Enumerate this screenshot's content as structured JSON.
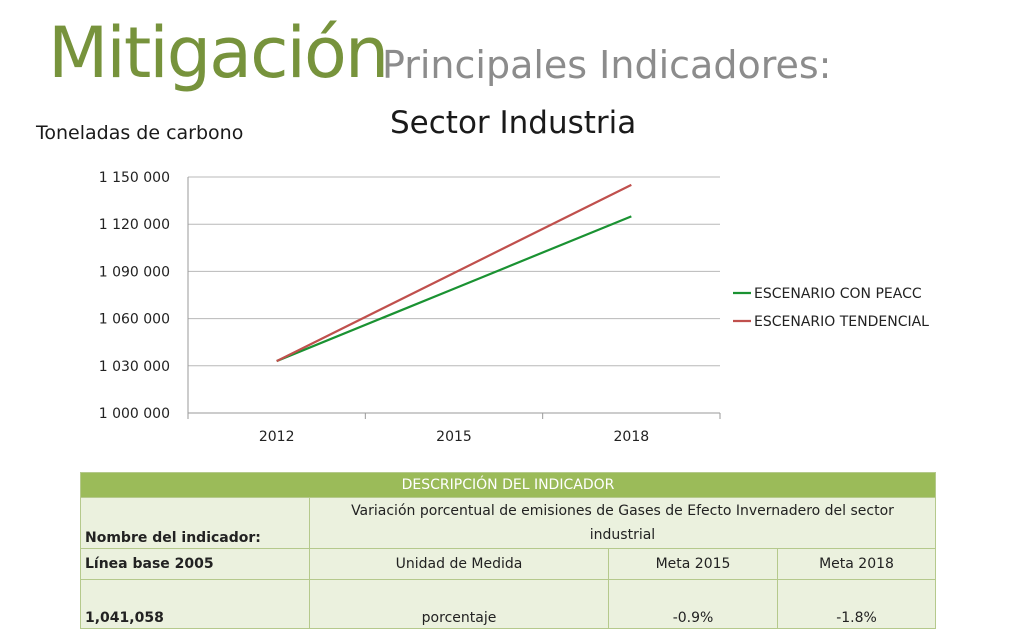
{
  "header": {
    "title": "Mitigación",
    "subtitle": "Principales Indicadores:"
  },
  "chart_data": {
    "type": "line",
    "title": "Sector Industria",
    "ylabel": "Toneladas de carbono",
    "xlabel": "",
    "categories": [
      "2012",
      "2015",
      "2018"
    ],
    "ylim": [
      1000000,
      1150000
    ],
    "yticks": [
      "1 000 000",
      "1 030 000",
      "1 060 000",
      "1 090 000",
      "1 120 000",
      "1 150 000"
    ],
    "ytick_values": [
      1000000,
      1030000,
      1060000,
      1090000,
      1120000,
      1150000
    ],
    "grid": true,
    "legend": "right",
    "series": [
      {
        "name": "ESCENARIO CON PEACC",
        "color": "#1a9232",
        "values": [
          1033000,
          1079000,
          1125000
        ]
      },
      {
        "name": "ESCENARIO TENDENCIAL",
        "color": "#c0504d",
        "values": [
          1033000,
          1089000,
          1145000
        ]
      }
    ]
  },
  "table": {
    "header": "DESCRIPCIÓN DEL INDICADOR",
    "name_label": "Nombre del indicador:",
    "name_value": "Variación porcentual de emisiones de Gases de Efecto Invernadero del sector industrial",
    "cols": [
      "Línea base 2005",
      "Unidad de Medida",
      "Meta 2015",
      "Meta 2018"
    ],
    "values": [
      "1,041,058",
      "porcentaje",
      "-0.9%",
      "-1.8%"
    ]
  }
}
